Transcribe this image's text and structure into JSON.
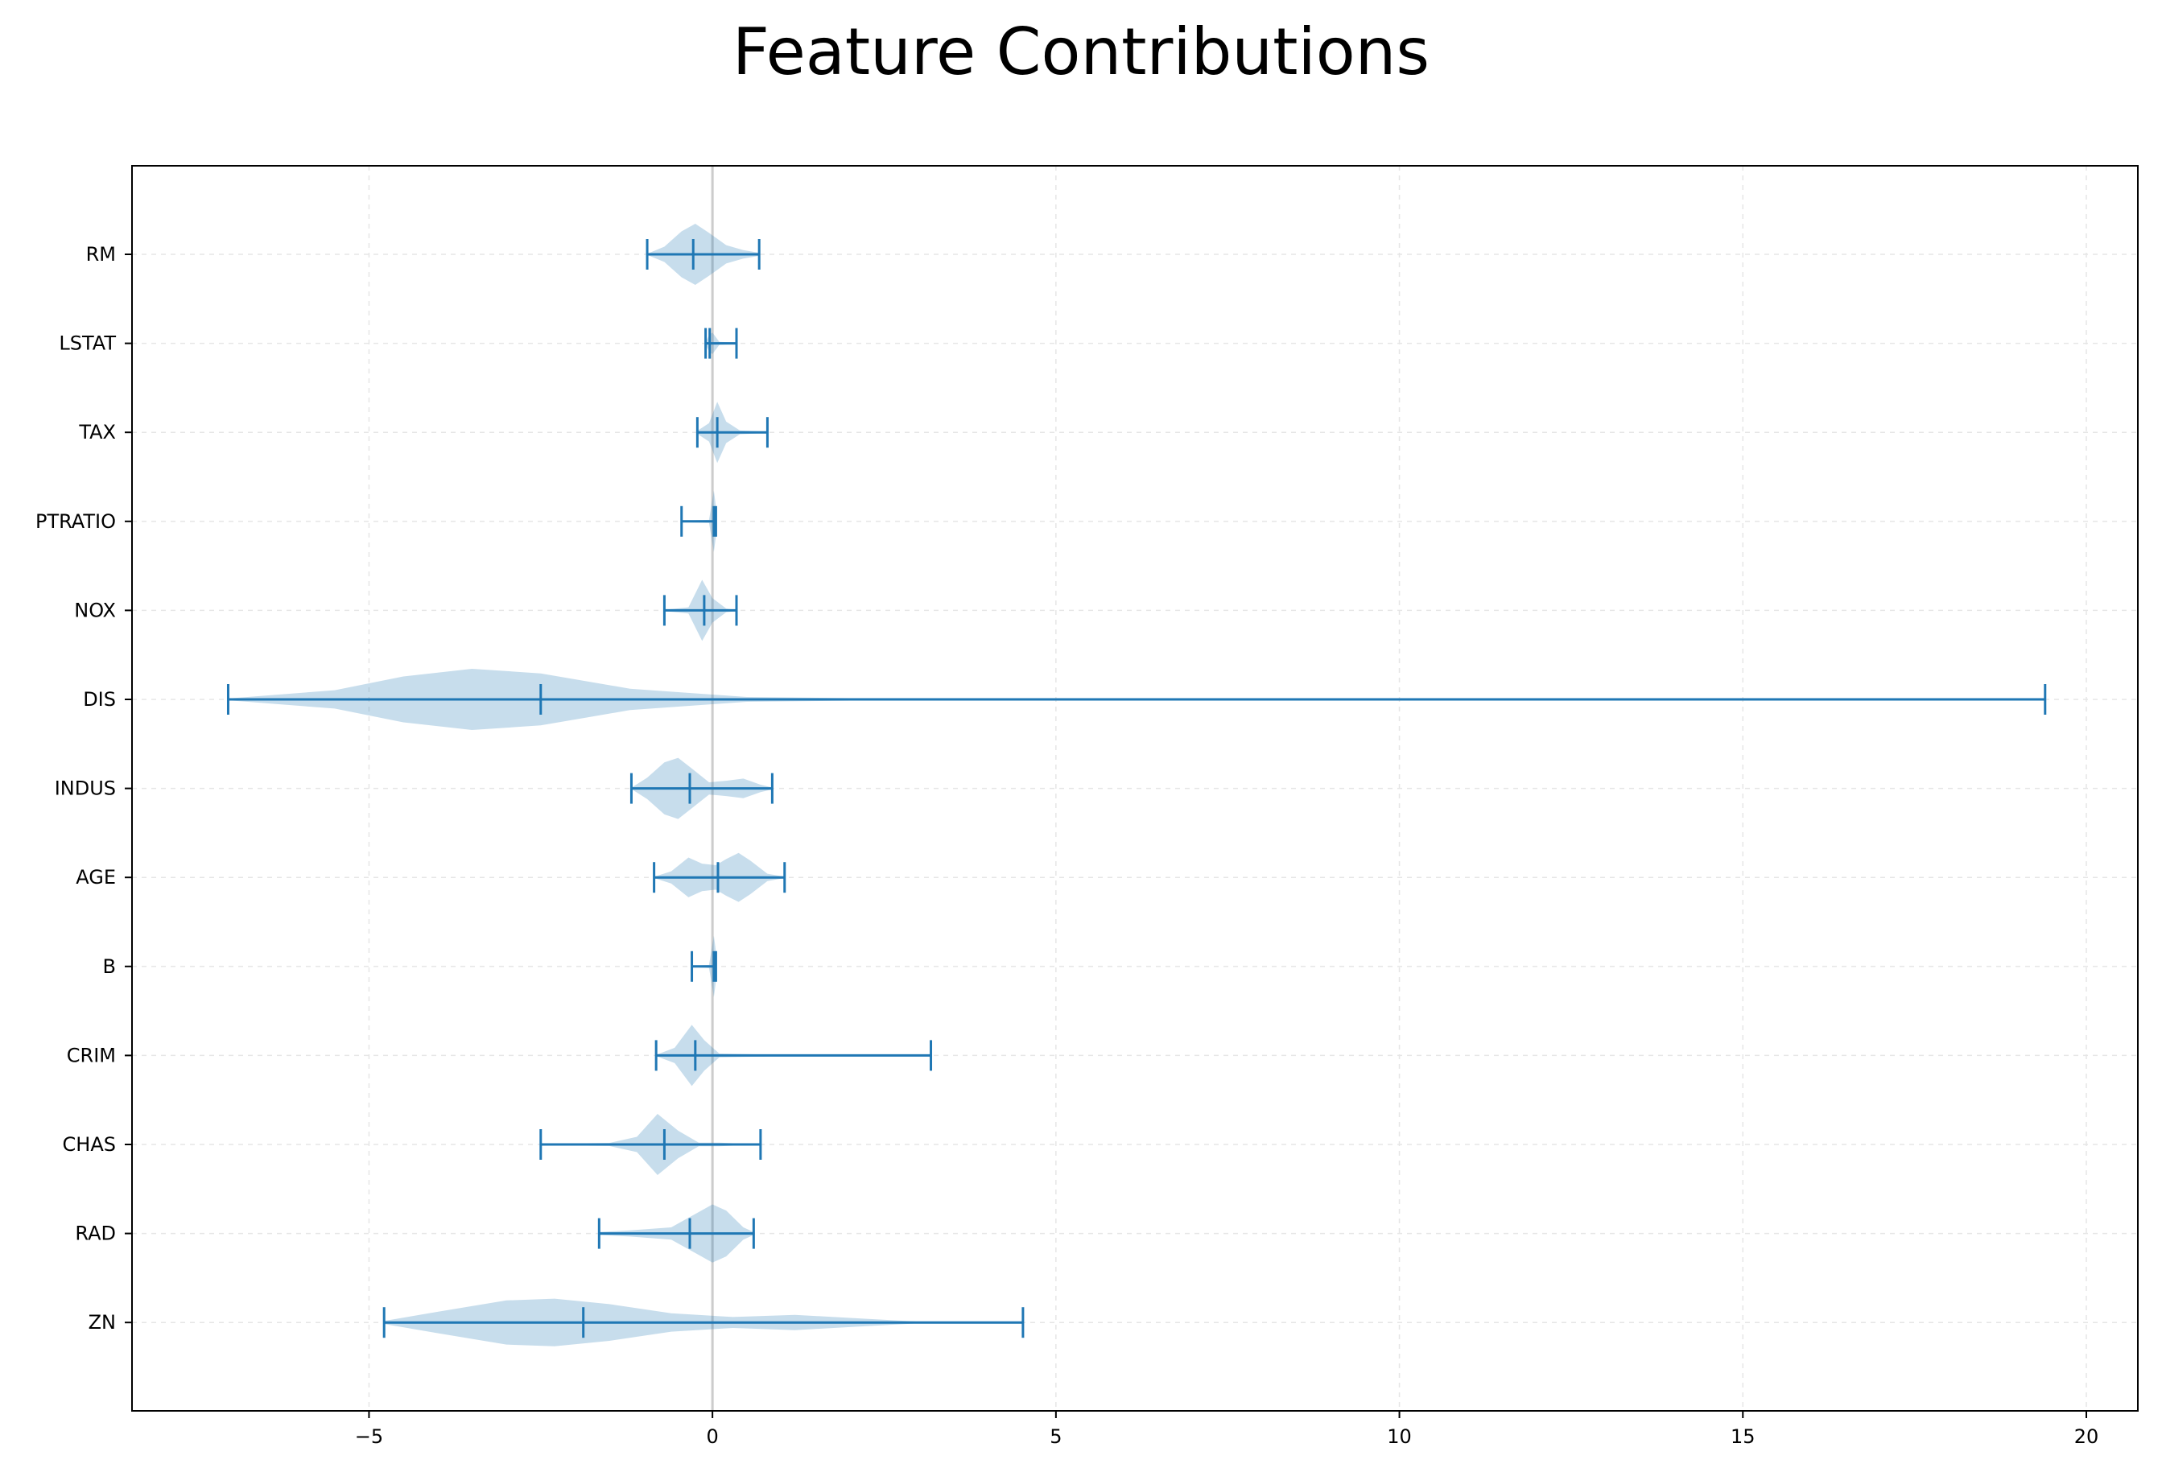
{
  "chart_data": {
    "type": "violin",
    "title": "Feature Contributions",
    "xlabel": "",
    "ylabel": "",
    "xlim": [
      -8.45,
      20.75
    ],
    "xticks": [
      -5,
      0,
      5,
      10,
      15,
      20
    ],
    "xtick_labels": [
      "−5",
      "0",
      "5",
      "10",
      "15",
      "20"
    ],
    "grid": true,
    "orientation": "horizontal",
    "zero_line": true,
    "colors": {
      "fill": "#1f77b4",
      "fill_opacity": 0.25,
      "line": "#1f77b4",
      "grid": "#e6e6e6",
      "zero_line": "#cccccc"
    },
    "categories": [
      "RM",
      "LSTAT",
      "TAX",
      "PTRATIO",
      "NOX",
      "DIS",
      "INDUS",
      "AGE",
      "B",
      "CRIM",
      "CHAS",
      "RAD",
      "ZN"
    ],
    "series": [
      {
        "label": "RM",
        "min": -0.95,
        "median": -0.28,
        "max": 0.68,
        "density": [
          [
            -0.95,
            0.02
          ],
          [
            -0.7,
            0.25
          ],
          [
            -0.45,
            0.75
          ],
          [
            -0.25,
            1.0
          ],
          [
            -0.05,
            0.7
          ],
          [
            0.2,
            0.3
          ],
          [
            0.45,
            0.14
          ],
          [
            0.68,
            0.05
          ]
        ]
      },
      {
        "label": "LSTAT",
        "min": -0.1,
        "median": -0.04,
        "max": 0.35,
        "density": [
          [
            -0.1,
            0.05
          ],
          [
            -0.04,
            0.3
          ],
          [
            0.0,
            0.35
          ],
          [
            0.1,
            0.05
          ],
          [
            0.35,
            0.02
          ]
        ]
      },
      {
        "label": "TAX",
        "min": -0.22,
        "median": 0.07,
        "max": 0.8,
        "density": [
          [
            -0.22,
            0.05
          ],
          [
            -0.05,
            0.3
          ],
          [
            0.07,
            1.0
          ],
          [
            0.2,
            0.35
          ],
          [
            0.4,
            0.06
          ],
          [
            0.8,
            0.02
          ]
        ]
      },
      {
        "label": "PTRATIO",
        "min": -0.45,
        "median": 0.02,
        "max": 0.05,
        "density": [
          [
            -0.45,
            0.02
          ],
          [
            -0.05,
            0.05
          ],
          [
            0.02,
            1.0
          ],
          [
            0.05,
            0.5
          ]
        ]
      },
      {
        "label": "NOX",
        "min": -0.7,
        "median": -0.12,
        "max": 0.35,
        "density": [
          [
            -0.7,
            0.02
          ],
          [
            -0.35,
            0.1
          ],
          [
            -0.15,
            1.0
          ],
          [
            0.0,
            0.4
          ],
          [
            0.2,
            0.06
          ],
          [
            0.35,
            0.02
          ]
        ]
      },
      {
        "label": "DIS",
        "min": -7.05,
        "median": -2.5,
        "max": 19.4,
        "density": [
          [
            -7.05,
            0.03
          ],
          [
            -5.5,
            0.3
          ],
          [
            -4.5,
            0.75
          ],
          [
            -3.5,
            1.0
          ],
          [
            -2.5,
            0.85
          ],
          [
            -1.2,
            0.35
          ],
          [
            0.5,
            0.08
          ],
          [
            2.0,
            0.04
          ],
          [
            19.4,
            0.0
          ]
        ]
      },
      {
        "label": "INDUS",
        "min": -1.18,
        "median": -0.33,
        "max": 0.87,
        "density": [
          [
            -1.18,
            0.02
          ],
          [
            -0.95,
            0.35
          ],
          [
            -0.7,
            0.85
          ],
          [
            -0.5,
            1.0
          ],
          [
            -0.3,
            0.65
          ],
          [
            -0.05,
            0.2
          ],
          [
            0.2,
            0.25
          ],
          [
            0.45,
            0.32
          ],
          [
            0.7,
            0.12
          ],
          [
            0.87,
            0.03
          ]
        ]
      },
      {
        "label": "AGE",
        "min": -0.85,
        "median": 0.08,
        "max": 1.05,
        "density": [
          [
            -0.85,
            0.02
          ],
          [
            -0.6,
            0.2
          ],
          [
            -0.35,
            0.65
          ],
          [
            -0.15,
            0.45
          ],
          [
            0.05,
            0.4
          ],
          [
            0.2,
            0.6
          ],
          [
            0.38,
            0.8
          ],
          [
            0.55,
            0.55
          ],
          [
            0.8,
            0.12
          ],
          [
            1.05,
            0.02
          ]
        ]
      },
      {
        "label": "B",
        "min": -0.3,
        "median": 0.02,
        "max": 0.05,
        "density": [
          [
            -0.3,
            0.02
          ],
          [
            -0.05,
            0.05
          ],
          [
            0.02,
            1.0
          ],
          [
            0.05,
            0.5
          ]
        ]
      },
      {
        "label": "CRIM",
        "min": -0.82,
        "median": -0.25,
        "max": 3.18,
        "density": [
          [
            -0.82,
            0.02
          ],
          [
            -0.55,
            0.25
          ],
          [
            -0.3,
            1.0
          ],
          [
            -0.12,
            0.5
          ],
          [
            0.1,
            0.06
          ],
          [
            1.0,
            0.02
          ],
          [
            3.18,
            0.0
          ]
        ]
      },
      {
        "label": "CHAS",
        "min": -2.5,
        "median": -0.7,
        "max": 0.7,
        "density": [
          [
            -2.5,
            0.02
          ],
          [
            -1.5,
            0.05
          ],
          [
            -1.1,
            0.25
          ],
          [
            -0.8,
            1.0
          ],
          [
            -0.5,
            0.45
          ],
          [
            -0.2,
            0.06
          ],
          [
            0.1,
            0.06
          ],
          [
            0.4,
            0.03
          ],
          [
            0.7,
            0.02
          ]
        ]
      },
      {
        "label": "RAD",
        "min": -1.65,
        "median": -0.33,
        "max": 0.6,
        "density": [
          [
            -1.65,
            0.05
          ],
          [
            -1.2,
            0.1
          ],
          [
            -0.6,
            0.2
          ],
          [
            -0.2,
            0.7
          ],
          [
            0.0,
            0.95
          ],
          [
            0.2,
            0.75
          ],
          [
            0.45,
            0.2
          ],
          [
            0.6,
            0.05
          ]
        ]
      },
      {
        "label": "ZN",
        "min": -4.78,
        "median": -1.88,
        "max": 4.52,
        "density": [
          [
            -4.78,
            0.05
          ],
          [
            -4.0,
            0.35
          ],
          [
            -3.0,
            0.72
          ],
          [
            -2.3,
            0.78
          ],
          [
            -1.5,
            0.6
          ],
          [
            -0.6,
            0.3
          ],
          [
            0.3,
            0.18
          ],
          [
            1.2,
            0.25
          ],
          [
            2.0,
            0.15
          ],
          [
            3.0,
            0.03
          ],
          [
            4.52,
            0.0
          ]
        ]
      }
    ]
  }
}
